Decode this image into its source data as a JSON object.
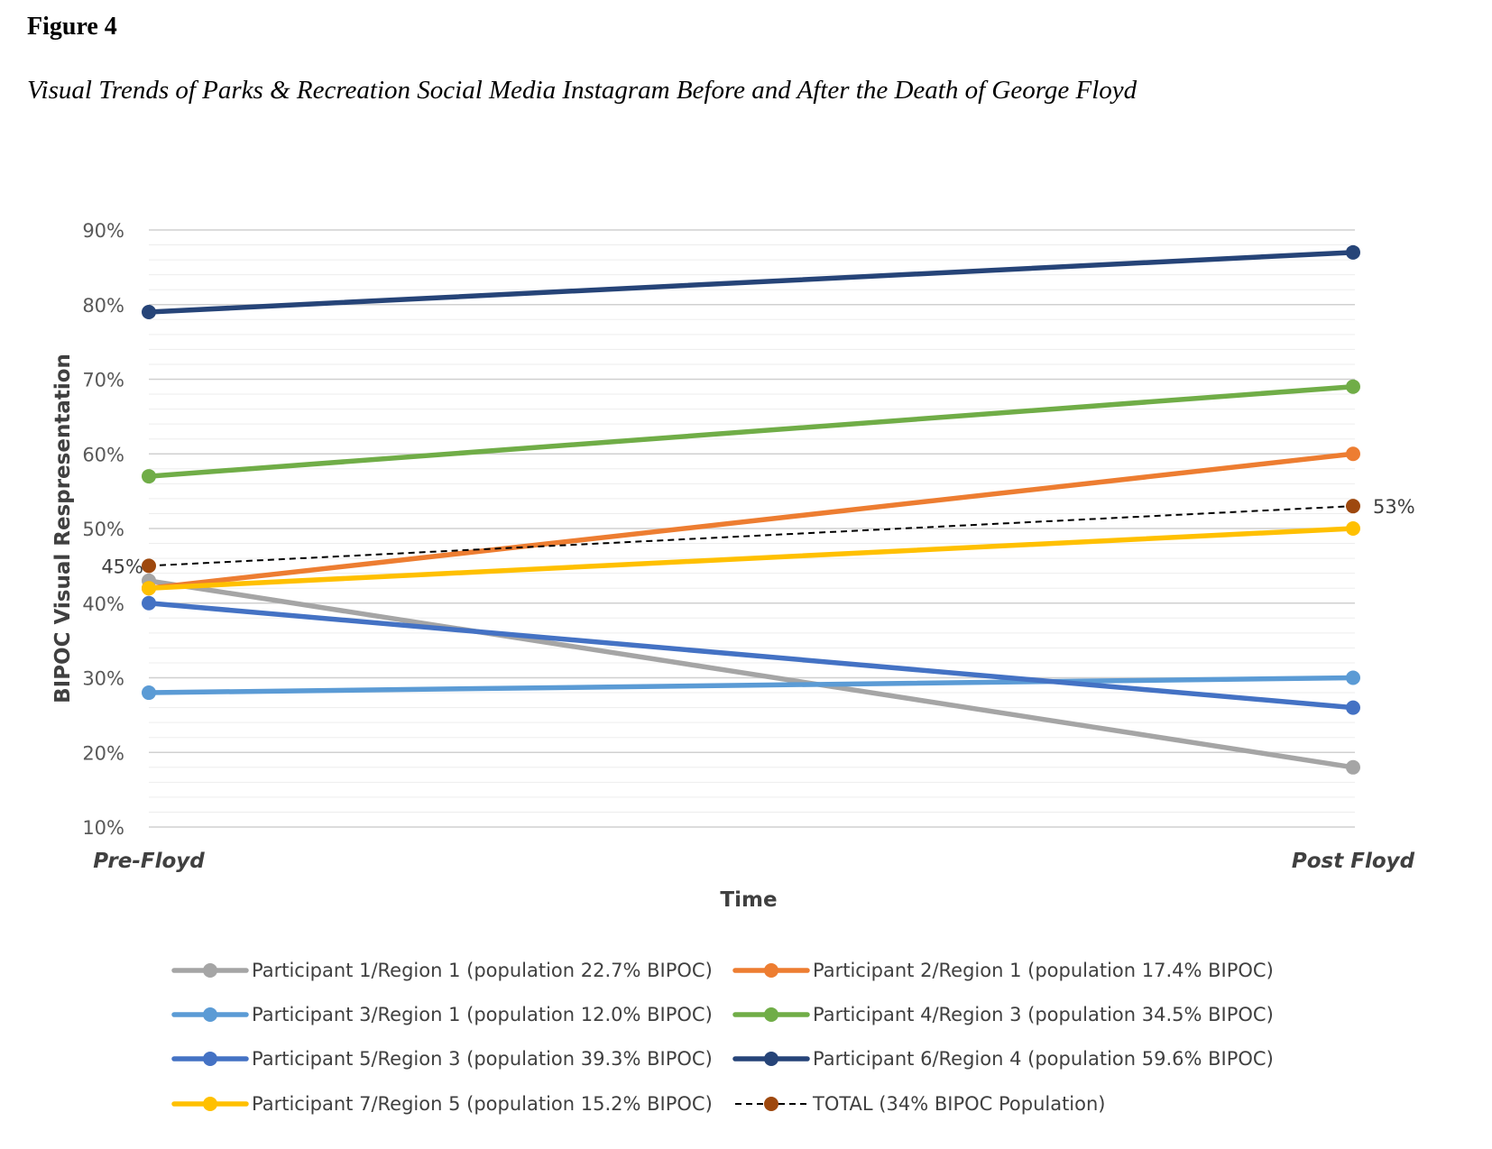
{
  "figure": {
    "label": "Figure 4",
    "title": "Visual Trends of Parks & Recreation Social Media Instagram Before and After the Death of George Floyd"
  },
  "chart_data": {
    "type": "line",
    "title": "",
    "xlabel": "Time",
    "ylabel": "BIPOC Visual Respresentation",
    "categories": [
      "Pre-Floyd",
      "Post Floyd"
    ],
    "ylim": [
      0.1,
      0.9
    ],
    "yticks": [
      0.1,
      0.2,
      0.3,
      0.4,
      0.5,
      0.6,
      0.7,
      0.8,
      0.9
    ],
    "ytick_labels": [
      "10%",
      "20%",
      "30%",
      "40%",
      "50%",
      "60%",
      "70%",
      "80%",
      "90%"
    ],
    "minor_grid_step": 0.02,
    "grid": true,
    "legend_position": "bottom",
    "series": [
      {
        "name": "Participant 1/Region 1 (population 22.7% BIPOC)",
        "values": [
          0.43,
          0.18
        ],
        "color": "#A5A5A5",
        "style": "solid"
      },
      {
        "name": "Participant 2/Region 1 (population 17.4% BIPOC)",
        "values": [
          0.42,
          0.6
        ],
        "color": "#ED7D31",
        "style": "solid"
      },
      {
        "name": "Participant 3/Region 1 (population 12.0% BIPOC)",
        "values": [
          0.28,
          0.3
        ],
        "color": "#5B9BD5",
        "style": "solid"
      },
      {
        "name": "Participant 4/Region 3 (population 34.5% BIPOC)",
        "values": [
          0.57,
          0.69
        ],
        "color": "#70AD47",
        "style": "solid"
      },
      {
        "name": "Participant 5/Region 3 (population 39.3% BIPOC)",
        "values": [
          0.4,
          0.26
        ],
        "color": "#4472C4",
        "style": "solid"
      },
      {
        "name": "Participant 6/Region 4 (population 59.6% BIPOC)",
        "values": [
          0.79,
          0.87
        ],
        "color": "#264478",
        "style": "solid"
      },
      {
        "name": "Participant 7/Region 5 (population 15.2% BIPOC)",
        "values": [
          0.42,
          0.5
        ],
        "color": "#FFC000",
        "style": "solid"
      },
      {
        "name": "TOTAL (34% BIPOC Population)",
        "values": [
          0.45,
          0.53
        ],
        "color": "#9E480E",
        "style": "dashed",
        "data_labels": [
          "45%",
          "53%"
        ]
      }
    ]
  }
}
